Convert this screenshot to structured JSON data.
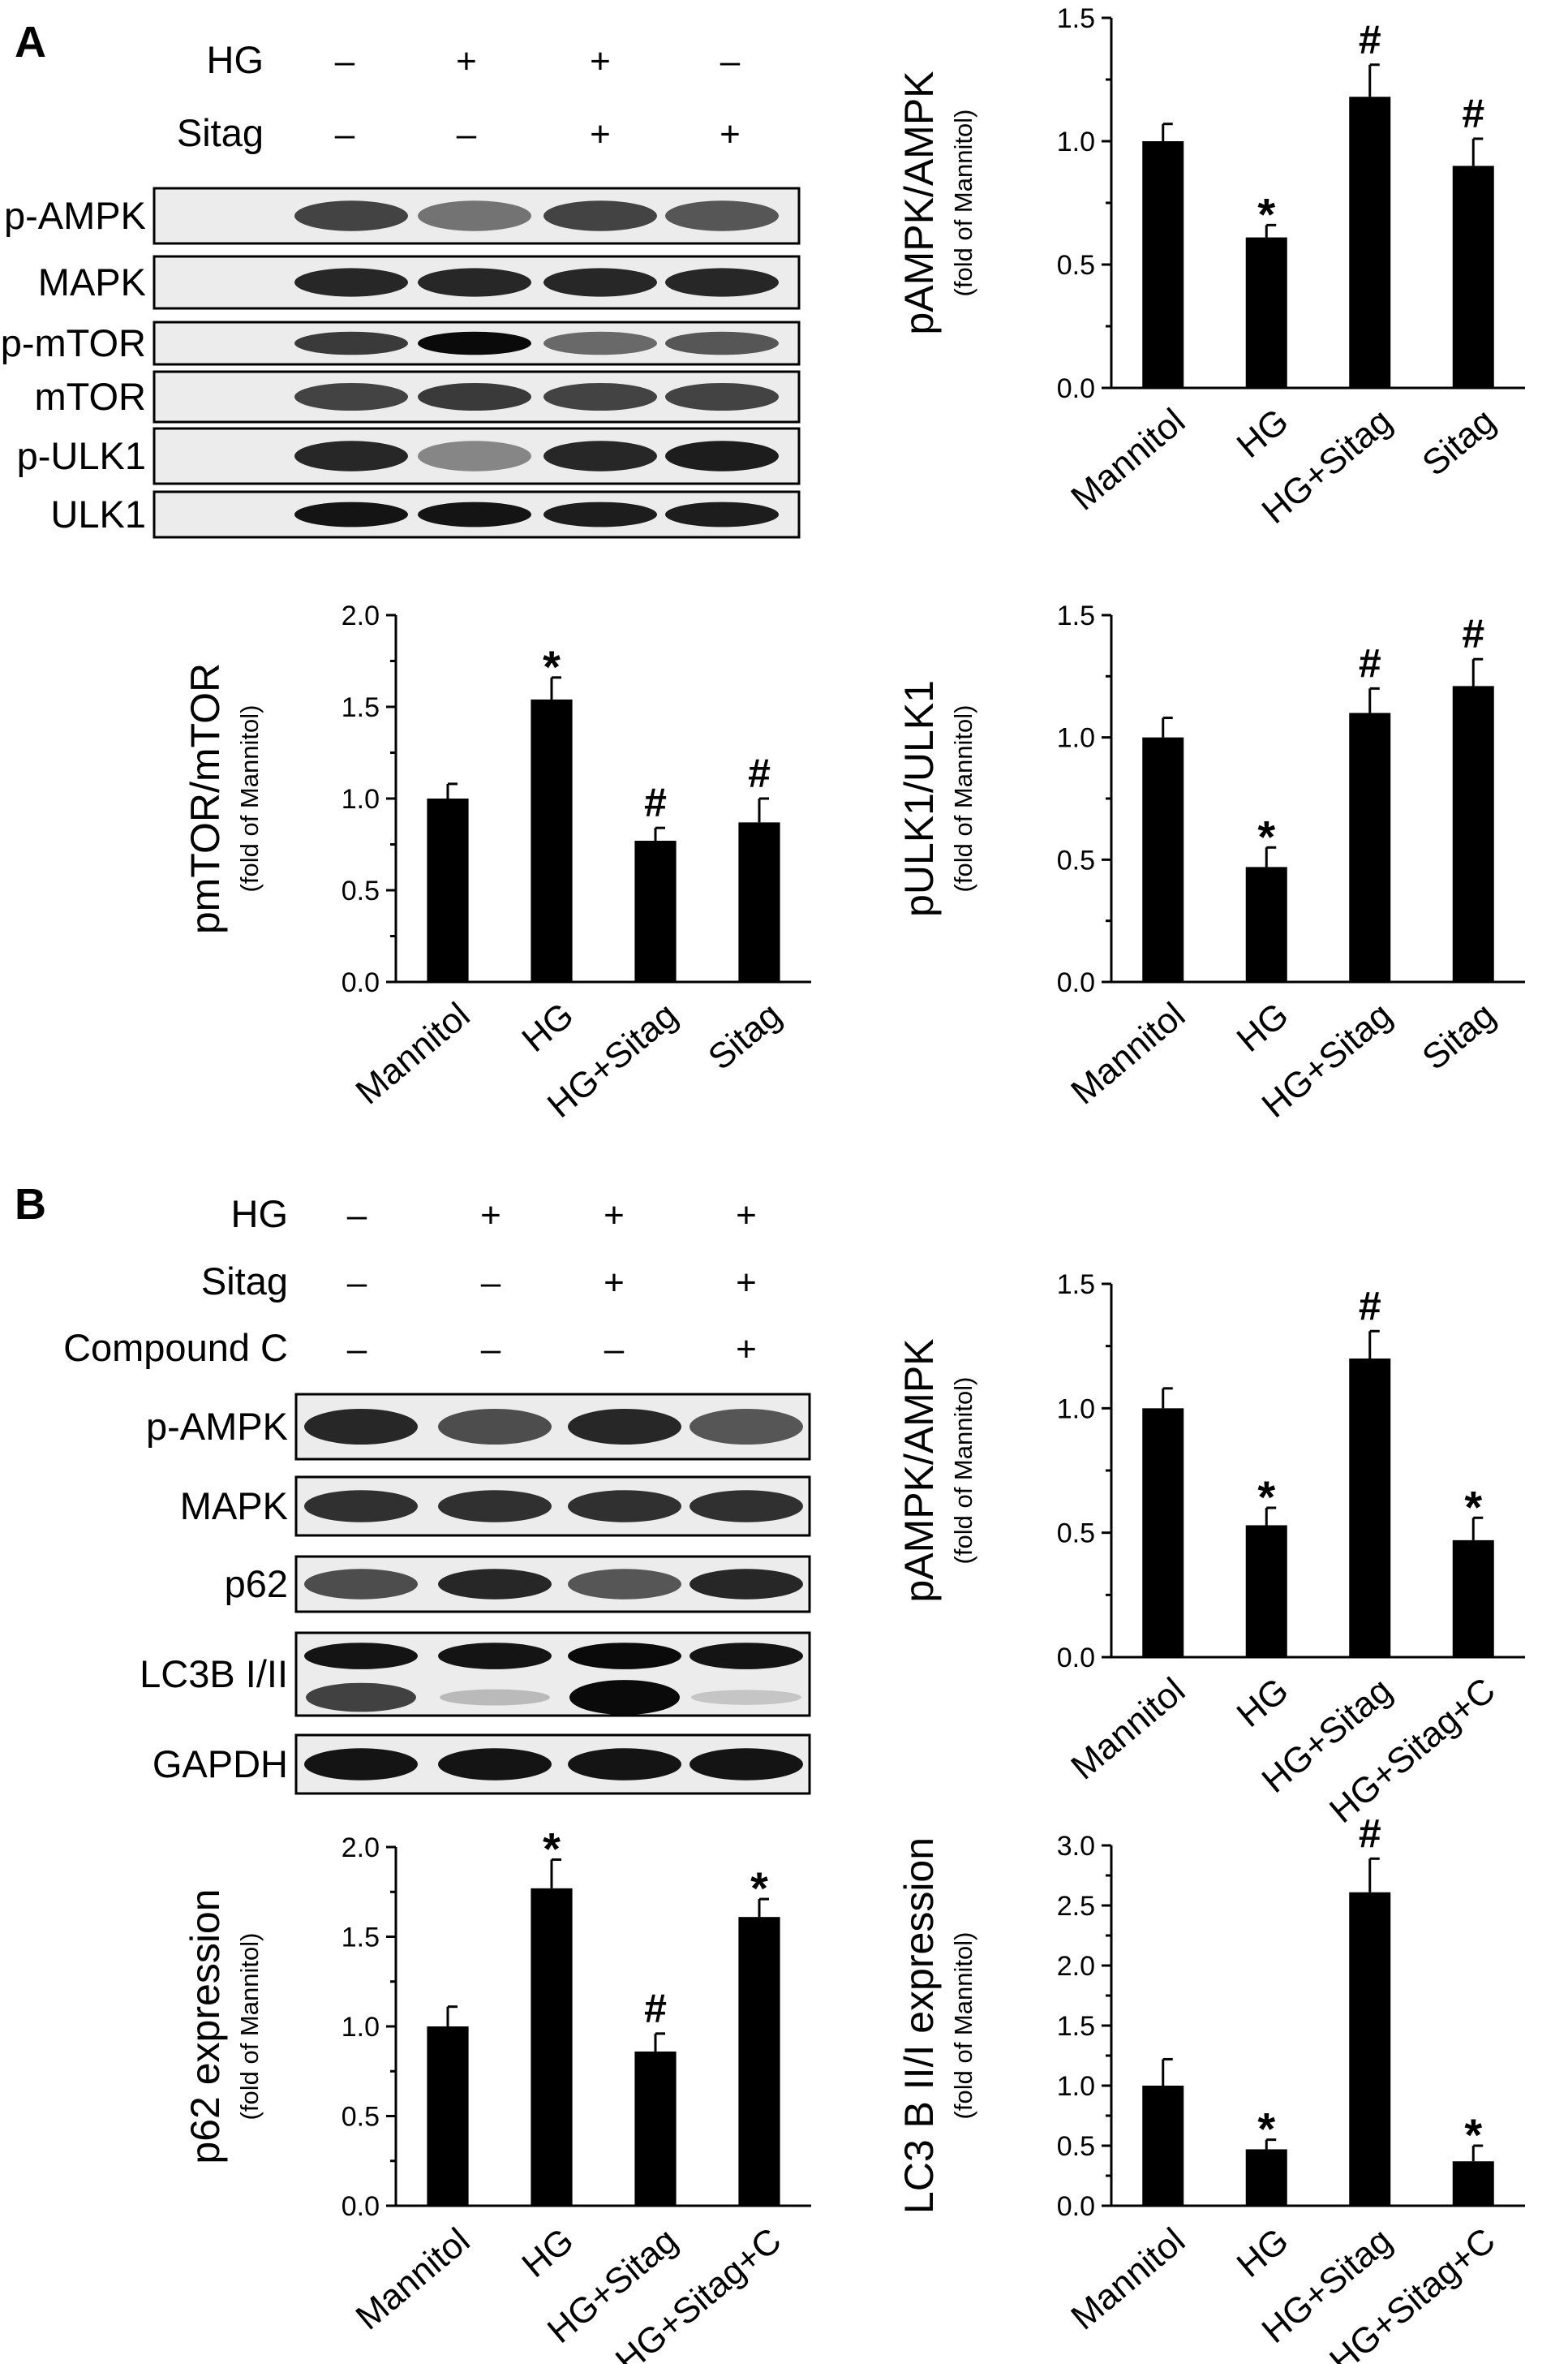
{
  "panel_labels": [
    "A",
    "B"
  ],
  "treatments": {
    "A": {
      "rows": [
        {
          "label": "HG",
          "signs": [
            "–",
            "+",
            "+",
            "–"
          ]
        },
        {
          "label": "Sitag",
          "signs": [
            "–",
            "–",
            "+",
            "+"
          ]
        }
      ]
    },
    "B": {
      "rows": [
        {
          "label": "HG",
          "signs": [
            "–",
            "+",
            "+",
            "+"
          ]
        },
        {
          "label": "Sitag",
          "signs": [
            "–",
            "–",
            "+",
            "+"
          ]
        },
        {
          "label": "Compound C",
          "signs": [
            "–",
            "–",
            "–",
            "+"
          ]
        }
      ]
    }
  },
  "blots": {
    "A": [
      {
        "label": "p-AMPK",
        "intensities": [
          0.7,
          0.45,
          0.7,
          0.6
        ]
      },
      {
        "label": "MAPK",
        "intensities": [
          0.85,
          0.85,
          0.85,
          0.85
        ]
      },
      {
        "label": "p-mTOR",
        "intensities": [
          0.75,
          1.0,
          0.5,
          0.6
        ]
      },
      {
        "label": "mTOR",
        "intensities": [
          0.7,
          0.75,
          0.7,
          0.7
        ]
      },
      {
        "label": "p-ULK1",
        "intensities": [
          0.85,
          0.35,
          0.85,
          0.9
        ]
      },
      {
        "label": "ULK1",
        "intensities": [
          0.95,
          0.95,
          0.9,
          0.9
        ]
      }
    ],
    "B": [
      {
        "label": "p-AMPK",
        "intensities": [
          0.85,
          0.65,
          0.85,
          0.6
        ]
      },
      {
        "label": "MAPK",
        "intensities": [
          0.8,
          0.8,
          0.8,
          0.8
        ]
      },
      {
        "label": "p62",
        "intensities": [
          0.65,
          0.85,
          0.6,
          0.85
        ]
      },
      {
        "label": "LC3B I/II",
        "intensities": [
          0.95,
          0.95,
          1.0,
          0.95
        ]
      },
      {
        "label": "GAPDH",
        "intensities": [
          0.95,
          0.95,
          0.95,
          0.95
        ]
      }
    ]
  },
  "chart_data": [
    {
      "type": "bar",
      "ylabel": "pAMPK/AMPK",
      "ylabel_sub": "(fold of Mannitol)",
      "categories": [
        "Mannitol",
        "HG",
        "HG+Sitag",
        "Sitag"
      ],
      "values": [
        1.0,
        0.61,
        1.18,
        0.9
      ],
      "errors": [
        0.07,
        0.05,
        0.13,
        0.11
      ],
      "markers": [
        "",
        "*",
        "#",
        "#"
      ],
      "ylim": [
        0.0,
        1.5
      ],
      "yticks": [
        "0.0",
        "0.5",
        "1.0",
        "1.5"
      ]
    },
    {
      "type": "bar",
      "ylabel": "pmTOR/mTOR",
      "ylabel_sub": "(fold of Mannitol)",
      "categories": [
        "Mannitol",
        "HG",
        "HG+Sitag",
        "Sitag"
      ],
      "values": [
        1.0,
        1.54,
        0.77,
        0.87
      ],
      "errors": [
        0.08,
        0.12,
        0.07,
        0.13
      ],
      "markers": [
        "",
        "*",
        "#",
        "#"
      ],
      "ylim": [
        0.0,
        2.0
      ],
      "yticks": [
        "0.0",
        "0.5",
        "1.0",
        "1.5",
        "2.0"
      ]
    },
    {
      "type": "bar",
      "ylabel": "pULK1/ULK1",
      "ylabel_sub": "(fold of Mannitol)",
      "categories": [
        "Mannitol",
        "HG",
        "HG+Sitag",
        "Sitag"
      ],
      "values": [
        1.0,
        0.47,
        1.1,
        1.21
      ],
      "errors": [
        0.08,
        0.08,
        0.1,
        0.11
      ],
      "markers": [
        "",
        "*",
        "#",
        "#"
      ],
      "ylim": [
        0.0,
        1.5
      ],
      "yticks": [
        "0.0",
        "0.5",
        "1.0",
        "1.5"
      ]
    },
    {
      "type": "bar",
      "ylabel": "pAMPK/AMPK",
      "ylabel_sub": "(fold of Mannitol)",
      "categories": [
        "Mannitol",
        "HG",
        "HG+Sitag",
        "HG+Sitag+C"
      ],
      "values": [
        1.0,
        0.53,
        1.2,
        0.47
      ],
      "errors": [
        0.08,
        0.07,
        0.11,
        0.09
      ],
      "markers": [
        "",
        "*",
        "#",
        "*"
      ],
      "ylim": [
        0.0,
        1.5
      ],
      "yticks": [
        "0.0",
        "0.5",
        "1.0",
        "1.5"
      ]
    },
    {
      "type": "bar",
      "ylabel": "p62 expression",
      "ylabel_sub": "(fold of Mannitol)",
      "categories": [
        "Mannitol",
        "HG",
        "HG+Sitag",
        "HG+Sitag+C"
      ],
      "values": [
        1.0,
        1.77,
        0.86,
        1.61
      ],
      "errors": [
        0.11,
        0.16,
        0.1,
        0.1
      ],
      "markers": [
        "",
        "*",
        "#",
        "*"
      ],
      "ylim": [
        0.0,
        2.0
      ],
      "yticks": [
        "0.0",
        "0.5",
        "1.0",
        "1.5",
        "2.0"
      ]
    },
    {
      "type": "bar",
      "ylabel": "LC3 B II/I expression",
      "ylabel_sub": "(fold of Mannitol)",
      "categories": [
        "Mannitol",
        "HG",
        "HG+Sitag",
        "HG+Sitag+C"
      ],
      "values": [
        1.0,
        0.47,
        2.61,
        0.37
      ],
      "errors": [
        0.22,
        0.08,
        0.28,
        0.13
      ],
      "markers": [
        "",
        "*",
        "#",
        "*"
      ],
      "ylim": [
        0.0,
        3.0
      ],
      "yticks": [
        "0.0",
        "0.5",
        "1.0",
        "1.5",
        "2.0",
        "2.5",
        "3.0"
      ]
    }
  ]
}
